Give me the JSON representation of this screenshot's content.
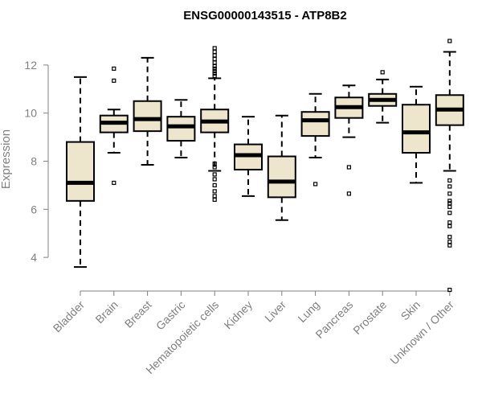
{
  "chart_data": {
    "type": "boxplot",
    "title": "ENSG00000143515 - ATP8B2",
    "xlabel": "",
    "ylabel": "Expression",
    "ylim": [
      2.6,
      13.2
    ],
    "yticks": [
      4,
      6,
      8,
      10,
      12
    ],
    "grid": false,
    "categories": [
      "Bladder",
      "Brain",
      "Breast",
      "Gastric",
      "Hematopoietic cells",
      "Kidney",
      "Liver",
      "Lung",
      "Pancreas",
      "Prostate",
      "Skin",
      "Unknown / Other"
    ],
    "box_color": "#ede6cc",
    "series": [
      {
        "category": "Bladder",
        "whisker_low": 3.6,
        "q1": 6.35,
        "median": 7.1,
        "q3": 8.8,
        "whisker_high": 11.5,
        "outliers": []
      },
      {
        "category": "Brain",
        "whisker_low": 8.35,
        "q1": 9.2,
        "median": 9.6,
        "q3": 9.9,
        "whisker_high": 10.15,
        "outliers": [
          11.85,
          11.35,
          7.1
        ]
      },
      {
        "category": "Breast",
        "whisker_low": 7.85,
        "q1": 9.25,
        "median": 9.75,
        "q3": 10.5,
        "whisker_high": 12.3,
        "outliers": []
      },
      {
        "category": "Gastric",
        "whisker_low": 8.15,
        "q1": 8.85,
        "median": 9.45,
        "q3": 9.85,
        "whisker_high": 10.55,
        "outliers": []
      },
      {
        "category": "Hematopoietic cells",
        "whisker_low": 7.6,
        "q1": 9.2,
        "median": 9.65,
        "q3": 10.15,
        "whisker_high": 11.45,
        "outliers": [
          12.7,
          12.55,
          12.4,
          12.25,
          12.1,
          11.95,
          11.85,
          11.75,
          11.65,
          11.55,
          7.9,
          7.75,
          7.45,
          7.25,
          7.0,
          6.75,
          6.55,
          6.4
        ]
      },
      {
        "category": "Kidney",
        "whisker_low": 6.55,
        "q1": 7.65,
        "median": 8.25,
        "q3": 8.7,
        "whisker_high": 9.85,
        "outliers": []
      },
      {
        "category": "Liver",
        "whisker_low": 5.55,
        "q1": 6.5,
        "median": 7.15,
        "q3": 8.2,
        "whisker_high": 9.9,
        "outliers": []
      },
      {
        "category": "Lung",
        "whisker_low": 8.15,
        "q1": 9.05,
        "median": 9.7,
        "q3": 10.05,
        "whisker_high": 10.8,
        "outliers": [
          7.05
        ]
      },
      {
        "category": "Pancreas",
        "whisker_low": 9.0,
        "q1": 9.8,
        "median": 10.25,
        "q3": 10.65,
        "whisker_high": 11.15,
        "outliers": [
          7.75,
          6.65
        ]
      },
      {
        "category": "Prostate",
        "whisker_low": 9.6,
        "q1": 10.3,
        "median": 10.55,
        "q3": 10.8,
        "whisker_high": 11.4,
        "outliers": [
          11.7
        ]
      },
      {
        "category": "Skin",
        "whisker_low": 7.1,
        "q1": 8.35,
        "median": 9.2,
        "q3": 10.35,
        "whisker_high": 11.1,
        "outliers": []
      },
      {
        "category": "Unknown / Other",
        "whisker_low": 7.6,
        "q1": 9.5,
        "median": 10.15,
        "q3": 10.75,
        "whisker_high": 12.55,
        "outliers": [
          13.0,
          7.2,
          6.95,
          6.65,
          6.35,
          6.25,
          6.1,
          5.85,
          5.45,
          5.3,
          4.85,
          4.65,
          4.5,
          2.65
        ]
      }
    ]
  }
}
